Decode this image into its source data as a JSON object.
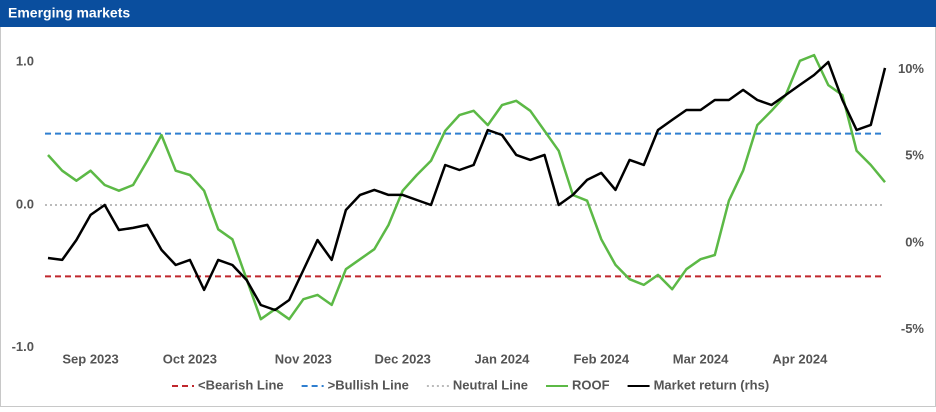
{
  "chart_data": {
    "type": "line",
    "title": "Emerging markets",
    "categories": [
      null,
      null,
      null,
      "Sep 2023",
      null,
      null,
      null,
      null,
      null,
      null,
      "Oct 2023",
      null,
      null,
      null,
      null,
      null,
      null,
      null,
      "Nov 2023",
      null,
      null,
      null,
      null,
      null,
      null,
      "Dec 2023",
      null,
      null,
      null,
      null,
      null,
      null,
      "Jan 2024",
      null,
      null,
      null,
      null,
      null,
      null,
      "Feb 2024",
      null,
      null,
      null,
      null,
      null,
      null,
      "Mar 2024",
      null,
      null,
      null,
      null,
      null,
      null,
      "Apr 2024",
      null,
      null,
      null,
      null,
      null,
      null
    ],
    "series": [
      {
        "name": "ROOF",
        "color": "#5cb946",
        "axis": "y",
        "values": [
          0.35,
          0.24,
          0.17,
          0.24,
          0.14,
          0.1,
          0.14,
          0.31,
          0.49,
          0.24,
          0.21,
          0.1,
          -0.17,
          -0.24,
          -0.52,
          -0.8,
          -0.73,
          -0.8,
          -0.66,
          -0.63,
          -0.7,
          -0.45,
          -0.38,
          -0.31,
          -0.14,
          0.1,
          0.21,
          0.31,
          0.52,
          0.63,
          0.66,
          0.56,
          0.7,
          0.73,
          0.66,
          0.52,
          0.38,
          0.07,
          0.03,
          -0.24,
          -0.42,
          -0.52,
          -0.56,
          -0.49,
          -0.59,
          -0.45,
          -0.38,
          -0.35,
          0.03,
          0.24,
          0.56,
          0.66,
          0.77,
          1.01,
          1.05,
          0.84,
          0.77,
          0.38,
          0.28,
          0.16
        ]
      },
      {
        "name": "Market return (rhs)",
        "color": "#000000",
        "axis": "y2",
        "values": [
          -0.87,
          -0.98,
          0.17,
          1.62,
          2.19,
          0.75,
          0.87,
          1.04,
          -0.4,
          -1.27,
          -0.98,
          -2.71,
          -0.98,
          -1.27,
          -2.14,
          -3.58,
          -3.87,
          -3.29,
          -1.56,
          0.17,
          -0.98,
          1.9,
          2.77,
          3.06,
          2.77,
          2.77,
          2.48,
          2.19,
          4.5,
          4.21,
          4.5,
          6.52,
          6.23,
          5.08,
          4.79,
          5.08,
          2.19,
          2.77,
          3.64,
          4.04,
          3.06,
          4.79,
          4.5,
          6.52,
          7.1,
          7.67,
          7.67,
          8.25,
          8.25,
          8.83,
          8.25,
          7.96,
          8.54,
          9.12,
          9.69,
          10.44,
          8.25,
          6.52,
          6.81,
          10.1
        ]
      }
    ],
    "reference_lines": [
      {
        "name": "<Bearish Line",
        "color": "#c0272d",
        "value": -0.5,
        "style": "dashed"
      },
      {
        "name": ">Bullish Line",
        "color": "#2f7fd0",
        "value": 0.5,
        "style": "dashed"
      },
      {
        "name": "Neutral Line",
        "color": "#bbbbbb",
        "value": 0,
        "style": "dotted"
      }
    ],
    "ylim": [
      -1.1,
      1.1
    ],
    "yticks": [
      {
        "value": -1,
        "label": "-1.0"
      },
      {
        "value": 0,
        "label": "0.0"
      },
      {
        "value": 1,
        "label": "1.0"
      }
    ],
    "y2lim": [
      -6.87,
      11.25
    ],
    "y2ticks": [
      {
        "value": -5,
        "label": "-5%"
      },
      {
        "value": 0,
        "label": "0%"
      },
      {
        "value": 5,
        "label": "5%"
      },
      {
        "value": 10,
        "label": "10%"
      }
    ],
    "legend": "bottom"
  }
}
